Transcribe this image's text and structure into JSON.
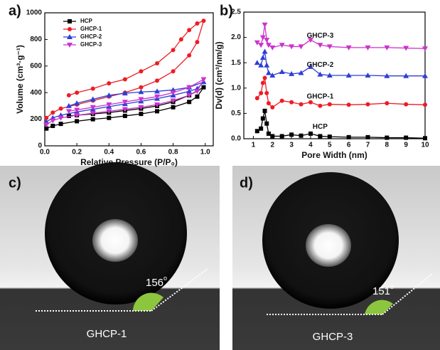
{
  "chart_data": [
    {
      "type": "line",
      "panel_label": "a)",
      "xlabel": "Relative Pressure (P/P₀)",
      "ylabel": "Volume (cm³·g⁻¹)",
      "xlim": [
        0,
        1.05
      ],
      "ylim": [
        0,
        1000
      ],
      "xticks": [
        {
          "value": 0,
          "label": "0.0"
        },
        {
          "value": 0.2,
          "label": "0.2"
        },
        {
          "value": 0.4,
          "label": "0.4"
        },
        {
          "value": 0.6,
          "label": "0.6"
        },
        {
          "value": 0.8,
          "label": "0.8"
        },
        {
          "value": 1,
          "label": "1.0"
        }
      ],
      "yticks": [
        0,
        200,
        400,
        600,
        800,
        1000
      ],
      "legend": "upper left",
      "series": [
        {
          "name": "HCP",
          "color": "#000000",
          "marker": "square",
          "x": [
            0.01,
            0.05,
            0.1,
            0.2,
            0.3,
            0.4,
            0.5,
            0.6,
            0.7,
            0.8,
            0.9,
            0.95,
            0.99,
            0.9,
            0.8,
            0.7,
            0.6,
            0.5,
            0.4,
            0.3,
            0.2,
            0.15
          ],
          "values": [
            130,
            150,
            165,
            185,
            200,
            210,
            225,
            240,
            260,
            290,
            330,
            370,
            440,
            380,
            330,
            300,
            280,
            265,
            250,
            240,
            230,
            225
          ]
        },
        {
          "name": "GHCP-1",
          "color": "#ee1c24",
          "marker": "circle",
          "x": [
            0.01,
            0.05,
            0.1,
            0.2,
            0.3,
            0.4,
            0.5,
            0.6,
            0.7,
            0.8,
            0.9,
            0.95,
            0.99,
            0.95,
            0.9,
            0.85,
            0.8,
            0.7,
            0.6,
            0.5,
            0.4,
            0.3,
            0.2,
            0.15
          ],
          "values": [
            210,
            250,
            280,
            310,
            340,
            370,
            400,
            440,
            490,
            560,
            680,
            780,
            940,
            920,
            870,
            800,
            720,
            620,
            560,
            500,
            470,
            430,
            400,
            380
          ]
        },
        {
          "name": "GHCP-2",
          "color": "#2e3ed6",
          "marker": "triangle",
          "x": [
            0.01,
            0.05,
            0.1,
            0.2,
            0.3,
            0.4,
            0.5,
            0.6,
            0.7,
            0.8,
            0.9,
            0.95,
            0.99,
            0.9,
            0.8,
            0.7,
            0.6,
            0.5,
            0.4,
            0.3,
            0.2,
            0.15
          ],
          "values": [
            180,
            210,
            230,
            255,
            275,
            295,
            315,
            335,
            355,
            380,
            410,
            430,
            480,
            440,
            420,
            410,
            405,
            395,
            380,
            350,
            320,
            300
          ]
        },
        {
          "name": "GHCP-3",
          "color": "#cc33cc",
          "marker": "triangle-down",
          "x": [
            0.01,
            0.05,
            0.1,
            0.2,
            0.3,
            0.4,
            0.5,
            0.6,
            0.7,
            0.8,
            0.9,
            0.95,
            0.99,
            0.9,
            0.8,
            0.7,
            0.6,
            0.5,
            0.4,
            0.3,
            0.2,
            0.15
          ],
          "values": [
            160,
            190,
            210,
            230,
            245,
            260,
            275,
            290,
            310,
            340,
            380,
            410,
            500,
            440,
            400,
            370,
            350,
            330,
            310,
            290,
            270,
            260
          ]
        }
      ]
    },
    {
      "type": "line",
      "panel_label": "b)",
      "xlabel": "Pore Width (nm)",
      "ylabel": "Dv(d) (cm³/nm/g)",
      "xlim": [
        0.5,
        10
      ],
      "ylim": [
        0,
        2.5
      ],
      "xticks": [
        1,
        2,
        3,
        4,
        5,
        6,
        7,
        8,
        9,
        10
      ],
      "yticks": [
        {
          "value": 0,
          "label": "0.0"
        },
        {
          "value": 0.5,
          "label": "0.5"
        },
        {
          "value": 1,
          "label": "1.0"
        },
        {
          "value": 1.5,
          "label": "1.5"
        },
        {
          "value": 2,
          "label": "2.0"
        },
        {
          "value": 2.5,
          "label": "2.5"
        }
      ],
      "legend": "none",
      "series": [
        {
          "name": "HCP",
          "color": "#000000",
          "marker": "square",
          "x": [
            1.2,
            1.4,
            1.5,
            1.6,
            1.7,
            1.8,
            2,
            2.5,
            3,
            3.5,
            4,
            4.5,
            5,
            6,
            7,
            8,
            9,
            10
          ],
          "values": [
            0.15,
            0.2,
            0.4,
            0.55,
            0.3,
            0.1,
            0.05,
            0.05,
            0.08,
            0.06,
            0.1,
            0.05,
            0.04,
            0.03,
            0.03,
            0.02,
            0.02,
            0.01
          ]
        },
        {
          "name": "GHCP-1",
          "color": "#ee1c24",
          "marker": "circle",
          "x": [
            1.2,
            1.4,
            1.5,
            1.6,
            1.7,
            1.8,
            2,
            2.5,
            3,
            3.5,
            4,
            4.5,
            5,
            6,
            7,
            8,
            9,
            10
          ],
          "values": [
            0.8,
            0.9,
            1.1,
            1.2,
            0.9,
            0.7,
            0.62,
            0.75,
            0.72,
            0.68,
            0.72,
            0.65,
            0.68,
            0.67,
            0.68,
            0.7,
            0.68,
            0.67
          ]
        },
        {
          "name": "GHCP-2",
          "color": "#2e3ed6",
          "marker": "triangle",
          "x": [
            1.2,
            1.4,
            1.5,
            1.6,
            1.7,
            1.8,
            2,
            2.5,
            3,
            3.5,
            4,
            4.5,
            5,
            6,
            7,
            8,
            9,
            10
          ],
          "values": [
            1.5,
            1.45,
            1.6,
            1.72,
            1.45,
            1.3,
            1.25,
            1.32,
            1.28,
            1.3,
            1.42,
            1.27,
            1.25,
            1.25,
            1.25,
            1.24,
            1.24,
            1.24
          ]
        },
        {
          "name": "GHCP-3",
          "color": "#cc33cc",
          "marker": "triangle-down",
          "x": [
            1.2,
            1.4,
            1.5,
            1.6,
            1.7,
            1.8,
            2,
            2.5,
            3,
            3.5,
            4,
            4.5,
            5,
            6,
            7,
            8,
            9,
            10
          ],
          "values": [
            1.9,
            1.85,
            2.0,
            2.25,
            1.95,
            1.85,
            1.8,
            1.85,
            1.82,
            1.82,
            1.95,
            1.85,
            1.82,
            1.8,
            1.8,
            1.8,
            1.79,
            1.78
          ]
        }
      ]
    }
  ],
  "photos": [
    {
      "panel_label": "c)",
      "angle": "156",
      "degree": "o",
      "sample": "GHCP-1"
    },
    {
      "panel_label": "d)",
      "angle": "151",
      "degree": "o",
      "sample": "GHCP-3"
    }
  ]
}
